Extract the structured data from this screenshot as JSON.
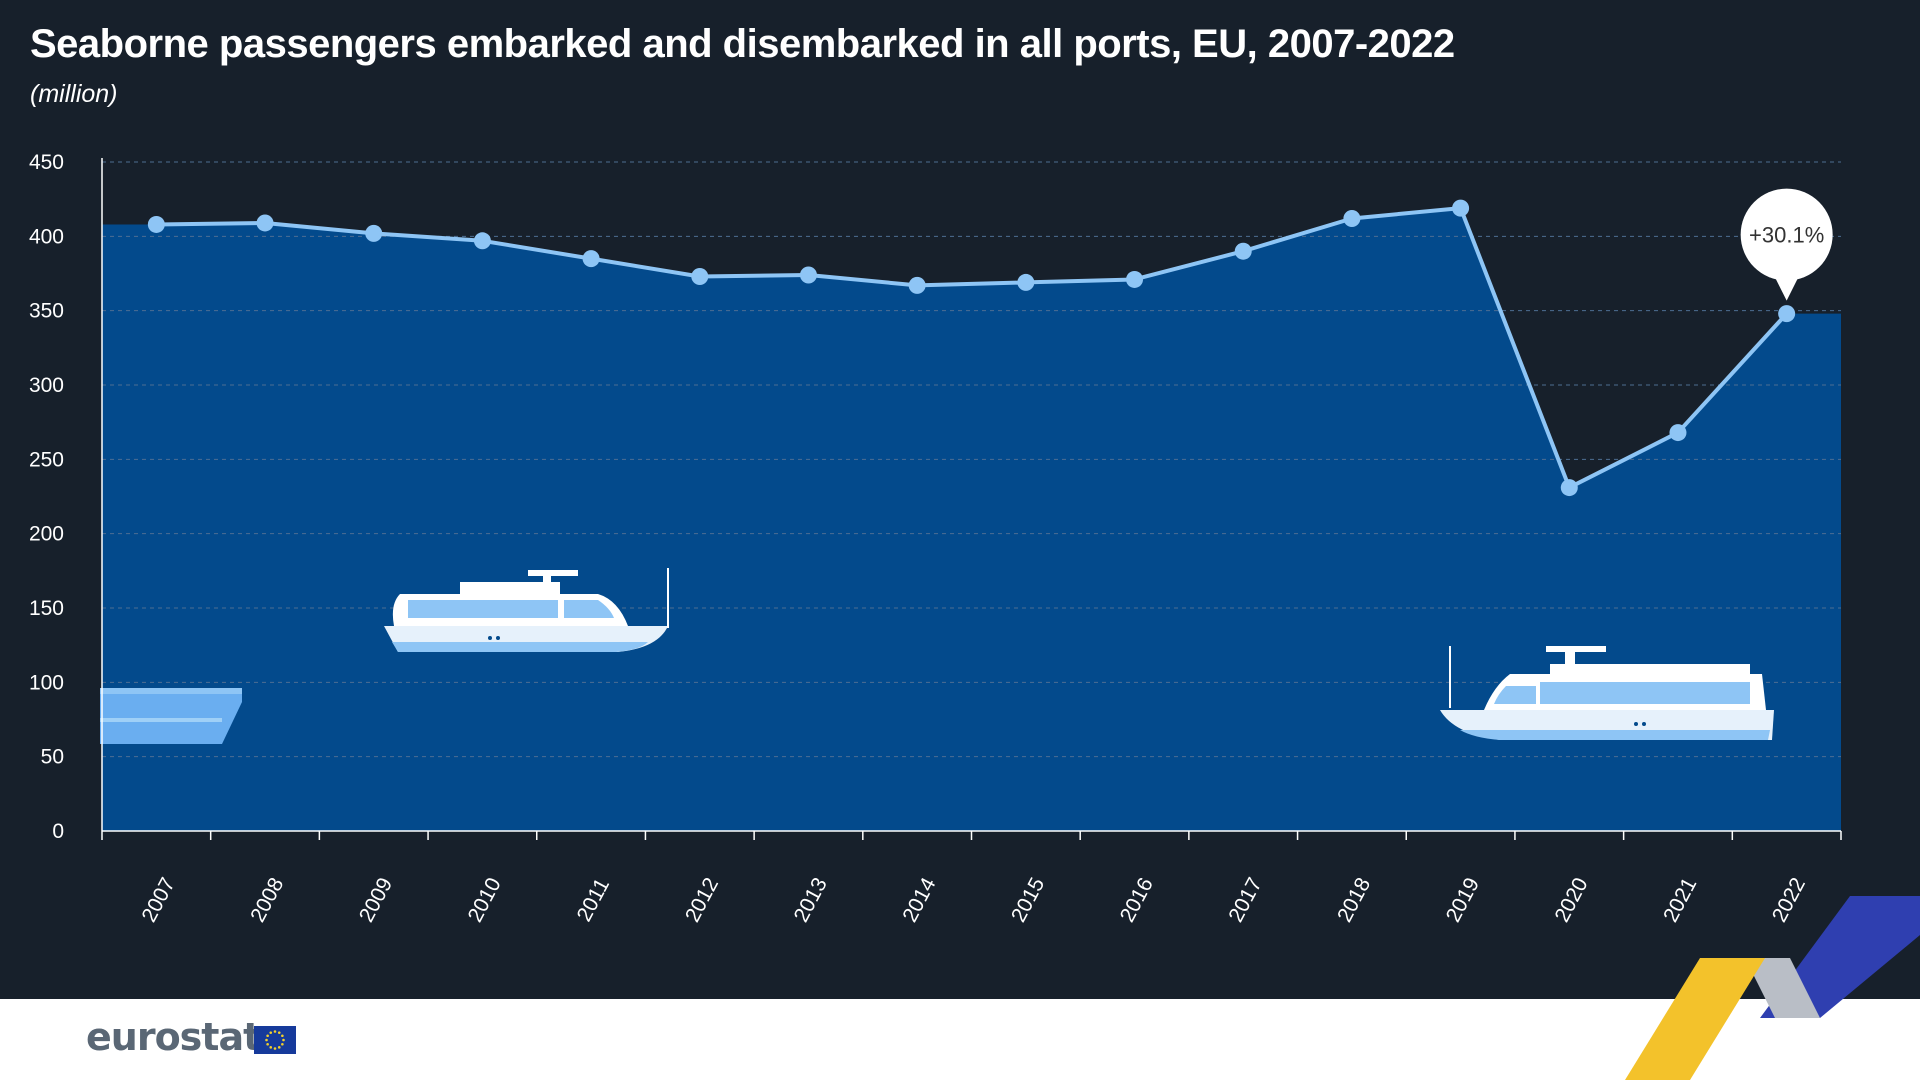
{
  "header": {
    "title": "Seaborne passengers embarked and disembarked in all ports, EU, 2007-2022",
    "subtitle": "(million)"
  },
  "chart_data": {
    "type": "area",
    "title": "Seaborne passengers embarked and disembarked in all ports, EU, 2007-2022",
    "unit": "million",
    "categories": [
      "2007",
      "2008",
      "2009",
      "2010",
      "2011",
      "2012",
      "2013",
      "2014",
      "2015",
      "2016",
      "2017",
      "2018",
      "2019",
      "2020",
      "2021",
      "2022"
    ],
    "values": [
      408,
      409,
      402,
      397,
      385,
      373,
      374,
      367,
      369,
      371,
      390,
      412,
      419,
      231,
      268,
      348
    ],
    "ylim": [
      0,
      450
    ],
    "yticks": [
      0,
      50,
      100,
      150,
      200,
      250,
      300,
      350,
      400,
      450
    ],
    "ytick_labels": [
      "0",
      "50",
      "100",
      "150",
      "200",
      "250",
      "300",
      "350",
      "400",
      "450"
    ],
    "annotation": {
      "category": "2022",
      "text": "+30.1%"
    },
    "colors": {
      "area": "#034a8c",
      "line": "#8ec5f5",
      "marker": "#8ec5f5",
      "grid": "#4d6e92",
      "axis": "#ffffff",
      "callout": "#ffffff"
    }
  },
  "footer": {
    "logo_text": "eurostat",
    "flag_icon": "eu-flag-icon"
  }
}
